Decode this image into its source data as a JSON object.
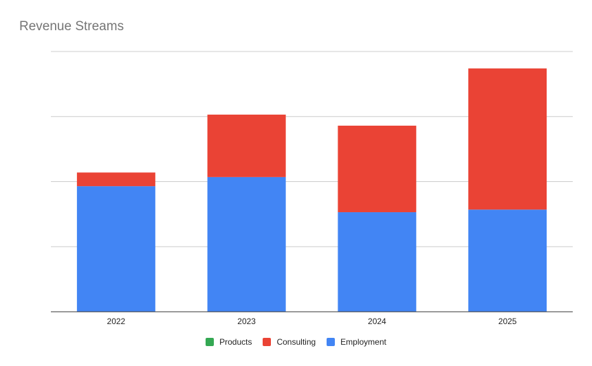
{
  "chart_data": {
    "type": "bar",
    "stacked": true,
    "title": "Revenue Streams",
    "xlabel": "",
    "ylabel": "",
    "categories": [
      "2022",
      "2023",
      "2024",
      "2025"
    ],
    "series": [
      {
        "name": "Products",
        "color": "#34a853",
        "values": [
          0,
          0,
          0,
          0
        ]
      },
      {
        "name": "Employment",
        "color": "#4285f4",
        "values": [
          1.93,
          2.07,
          1.53,
          1.57
        ]
      },
      {
        "name": "Consulting",
        "color": "#ea4335",
        "values": [
          0.21,
          0.96,
          1.33,
          2.17
        ]
      }
    ],
    "legend_order": [
      "Products",
      "Consulting",
      "Employment"
    ],
    "ylim": [
      0,
      4
    ],
    "y_tick_labels_shown": false,
    "grid": true,
    "legend_position": "bottom"
  }
}
